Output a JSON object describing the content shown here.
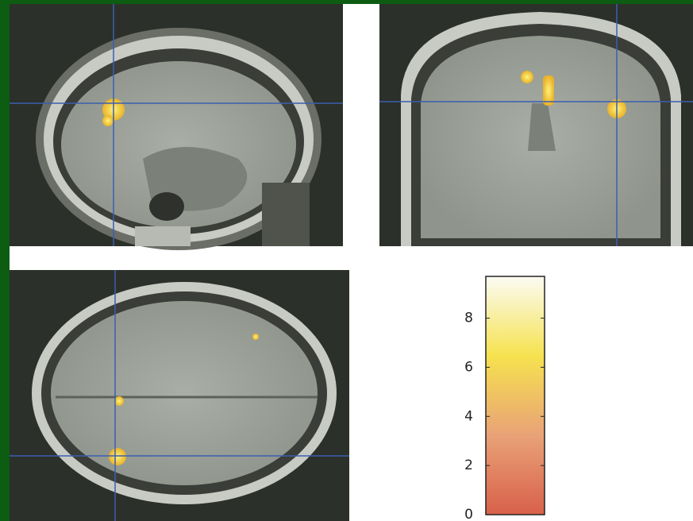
{
  "chart_data": {
    "type": "colorbar",
    "ylim": [
      0,
      9.7
    ],
    "yticks": [
      0,
      2,
      4,
      6,
      8
    ],
    "colormap": [
      "#d8604a",
      "#e9a277",
      "#f6e24f",
      "#fbfbf4"
    ]
  }
}
